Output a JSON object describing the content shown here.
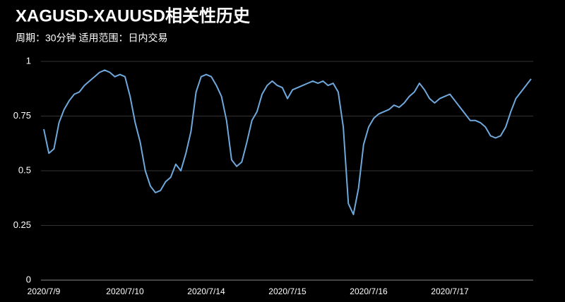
{
  "chart_data": {
    "type": "line",
    "title": "XAGUSD-XAUUSD相关性历史",
    "subtitle": "周期：30分钟  适用范围：日内交易",
    "categories": [
      "2020/7/9",
      null,
      null,
      null,
      null,
      null,
      null,
      null,
      null,
      null,
      null,
      null,
      null,
      null,
      null,
      null,
      "2020/7/10",
      null,
      null,
      null,
      null,
      null,
      null,
      null,
      null,
      null,
      null,
      null,
      null,
      null,
      null,
      null,
      "2020/7/14",
      null,
      null,
      null,
      null,
      null,
      null,
      null,
      null,
      null,
      null,
      null,
      null,
      null,
      null,
      null,
      "2020/7/15",
      null,
      null,
      null,
      null,
      null,
      null,
      null,
      null,
      null,
      null,
      null,
      null,
      null,
      null,
      null,
      "2020/7/16",
      null,
      null,
      null,
      null,
      null,
      null,
      null,
      null,
      null,
      null,
      null,
      null,
      null,
      null,
      null,
      "2020/7/17",
      null,
      null,
      null,
      null,
      null,
      null,
      null,
      null,
      null,
      null,
      null,
      null,
      null,
      null,
      null,
      null
    ],
    "values": [
      0.69,
      0.58,
      0.6,
      0.72,
      0.78,
      0.82,
      0.85,
      0.86,
      0.89,
      0.91,
      0.93,
      0.95,
      0.96,
      0.95,
      0.93,
      0.94,
      0.93,
      0.84,
      0.72,
      0.63,
      0.5,
      0.43,
      0.4,
      0.41,
      0.45,
      0.47,
      0.53,
      0.5,
      0.58,
      0.68,
      0.86,
      0.93,
      0.94,
      0.93,
      0.89,
      0.84,
      0.73,
      0.55,
      0.52,
      0.54,
      0.63,
      0.73,
      0.77,
      0.85,
      0.89,
      0.91,
      0.89,
      0.88,
      0.83,
      0.87,
      0.88,
      0.89,
      0.9,
      0.91,
      0.9,
      0.91,
      0.89,
      0.9,
      0.86,
      0.7,
      0.35,
      0.3,
      0.42,
      0.62,
      0.7,
      0.74,
      0.76,
      0.77,
      0.78,
      0.8,
      0.79,
      0.81,
      0.84,
      0.86,
      0.9,
      0.87,
      0.83,
      0.81,
      0.83,
      0.84,
      0.85,
      0.82,
      0.79,
      0.76,
      0.73,
      0.73,
      0.72,
      0.7,
      0.66,
      0.65,
      0.66,
      0.7,
      0.77,
      0.83,
      0.86,
      0.89,
      0.92
    ],
    "color": "#6fa8dc",
    "ylim": [
      0,
      1
    ],
    "yticks": [
      0,
      0.25,
      0.5,
      0.75,
      1
    ],
    "grid": true
  }
}
